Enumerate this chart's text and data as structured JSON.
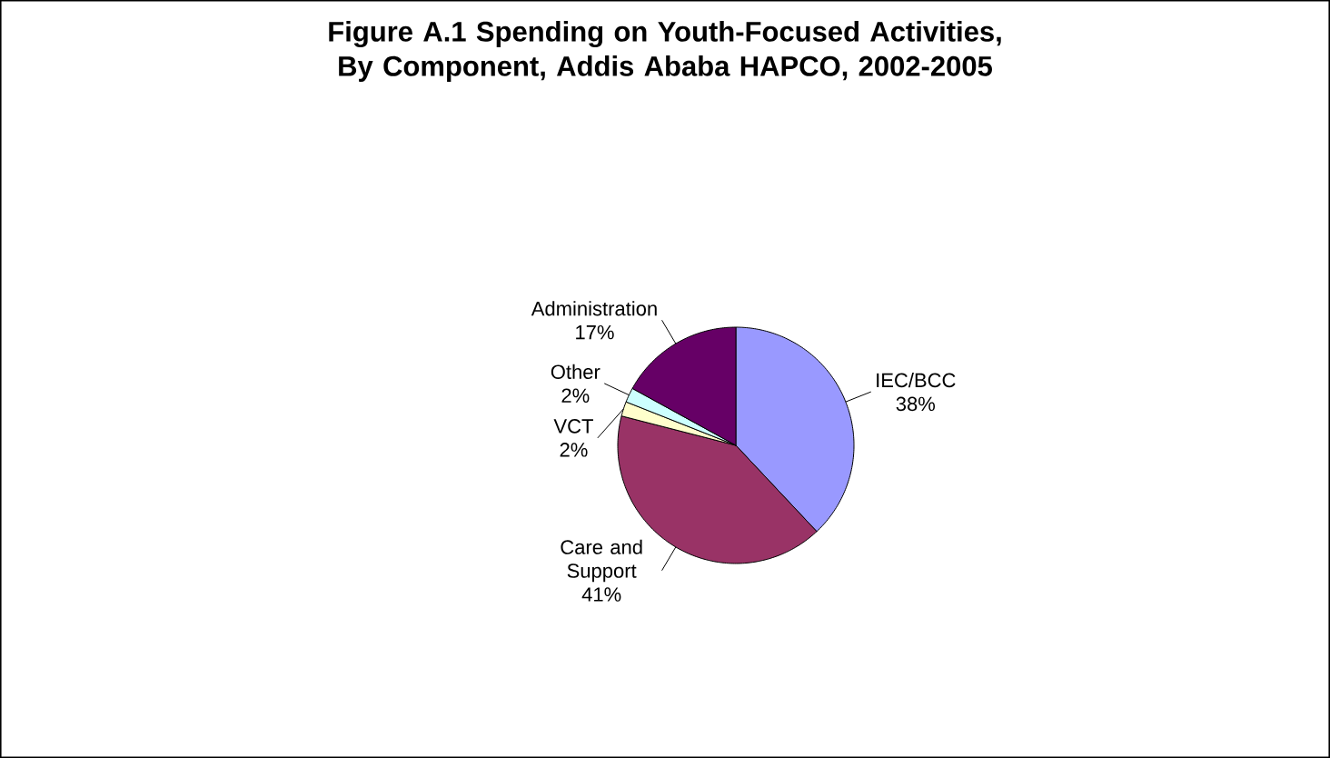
{
  "chart_data": {
    "type": "pie",
    "title": "Figure A.1 Spending on Youth-Focused Activities, By Component, Addis Ababa HAPCO, 2002-2005",
    "categories": [
      "IEC/BCC",
      "Care and Support",
      "VCT",
      "Other",
      "Administration"
    ],
    "values": [
      38,
      41,
      2,
      2,
      17
    ],
    "colors": [
      "#9999ff",
      "#993366",
      "#ffffcc",
      "#ccffff",
      "#660066"
    ],
    "value_labels": [
      "38%",
      "41%",
      "2%",
      "2%",
      "17%"
    ]
  }
}
